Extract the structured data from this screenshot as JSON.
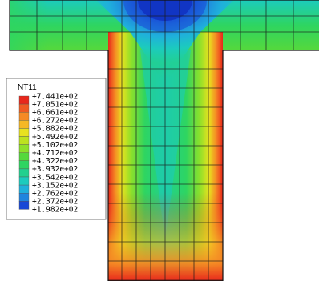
{
  "legend": {
    "title": "NT11",
    "labels": [
      "+7.441e+02",
      "+7.051e+02",
      "+6.661e+02",
      "+6.272e+02",
      "+5.882e+02",
      "+5.492e+02",
      "+5.102e+02",
      "+4.712e+02",
      "+4.322e+02",
      "+3.932e+02",
      "+3.542e+02",
      "+3.152e+02",
      "+2.762e+02",
      "+2.372e+02",
      "+1.982e+02"
    ],
    "colors": [
      "#e8271c",
      "#ef5a22",
      "#f58a24",
      "#f5b824",
      "#e8e21f",
      "#bde21f",
      "#8ee02a",
      "#55d83c",
      "#2ed561",
      "#22d08f",
      "#1ccbbd",
      "#1fb0db",
      "#1f84de",
      "#1847d6"
    ]
  },
  "field_colors": {
    "hot": "#e8271c",
    "cold": "#0a1fb0"
  }
}
